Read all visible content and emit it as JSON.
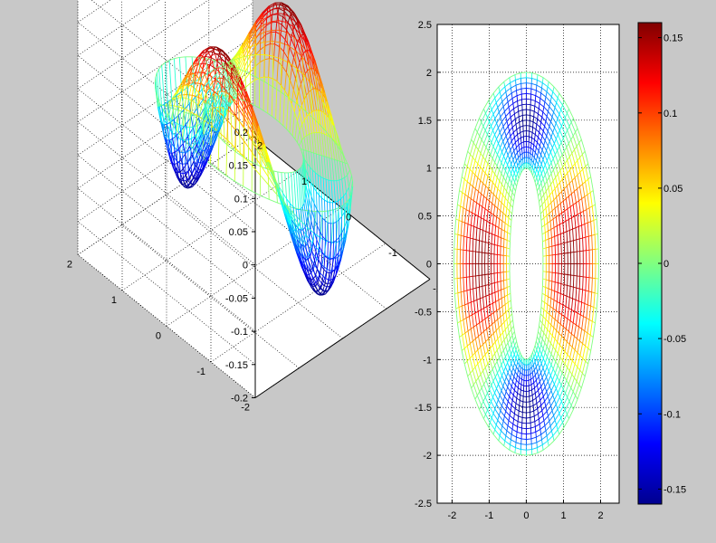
{
  "chart_data": [
    {
      "type": "surface-mesh-3d",
      "ztick_labels": [
        "0.2",
        "0.15",
        "0.1",
        "0.05",
        "0",
        "-0.05",
        "-0.1",
        "-0.15",
        "-0.2"
      ],
      "zticks": [
        0.2,
        0.15,
        0.1,
        0.05,
        0,
        -0.05,
        -0.1,
        -0.15,
        -0.2
      ],
      "ytick_labels": [
        "2",
        "1",
        "0",
        "-1",
        "-2"
      ],
      "xtick_labels": [
        "-2",
        "-1",
        "0",
        "1",
        "2"
      ],
      "zlim": [
        -0.2,
        0.2
      ],
      "xlim": [
        -2,
        2
      ],
      "ylim": [
        -2,
        2
      ],
      "grid": true,
      "surface": {
        "domain": "annulus",
        "inner_radii": [
          0.5,
          1
        ],
        "outer_radii": [
          1,
          2
        ],
        "peaks": 4,
        "amplitude": 0.16
      }
    },
    {
      "type": "surface-mesh-top-view",
      "xtick_labels": [
        "-2",
        "-1",
        "0",
        "1",
        "2"
      ],
      "ytick_labels": [
        "2.5",
        "2",
        "1.5",
        "1",
        "0.5",
        "0",
        "-0.5",
        "-1",
        "-1.5",
        "-2",
        "-2.5"
      ],
      "xticks": [
        -2,
        -1,
        0,
        1,
        2
      ],
      "yticks": [
        2.5,
        2,
        1.5,
        1,
        0.5,
        0,
        -0.5,
        -1,
        -1.5,
        -2,
        -2.5
      ],
      "xlim": [
        -2.4,
        2.5
      ],
      "ylim": [
        -2.5,
        2.5
      ],
      "grid": true,
      "annulus": {
        "inner": [
          0.45,
          1.0
        ],
        "outer": [
          1.95,
          2.0
        ]
      }
    },
    {
      "type": "colorbar",
      "colormap": "jet",
      "clim": [
        -0.16,
        0.16
      ],
      "tick_labels": [
        "0.15",
        "0.1",
        "0.05",
        "0",
        "-0.05",
        "-0.1",
        "-0.15"
      ],
      "ticks": [
        0.15,
        0.1,
        0.05,
        0,
        -0.05,
        -0.1,
        -0.15
      ]
    }
  ]
}
